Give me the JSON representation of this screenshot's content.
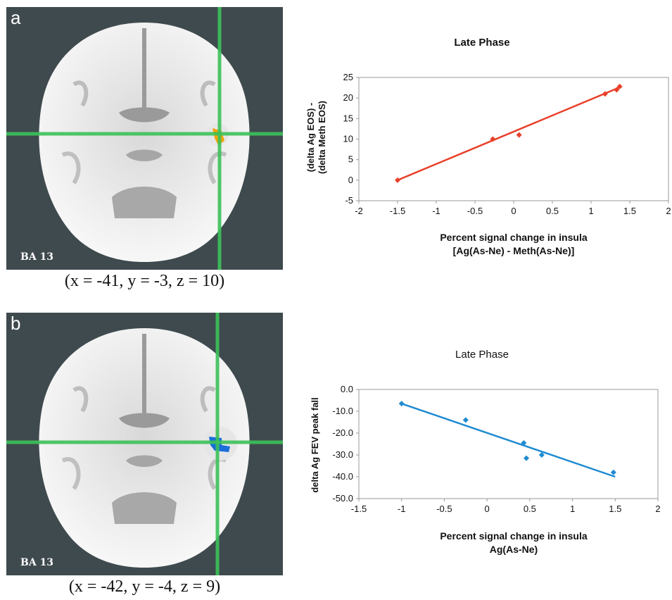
{
  "panel_a": {
    "letter": "a",
    "region_label": "BA 13",
    "coordinates": "(x = -41, y = -3, z = 10)",
    "blob_color": "#f2a300"
  },
  "panel_b": {
    "letter": "b",
    "region_label": "BA 13",
    "coordinates": "(x = -42, y = -4, z = 9)",
    "blob_color": "#1a6fd8"
  },
  "chart_data": [
    {
      "type": "scatter",
      "title": "Late Phase",
      "xlabel_line1": "Percent signal change in insula",
      "xlabel_line2": "[Ag(As-Ne) - Meth(As-Ne)]",
      "ylabel_line1": "(delta Ag EOS) -",
      "ylabel_line2": "(delta Meth EOS)",
      "xlim": [
        -2,
        2
      ],
      "ylim": [
        -5,
        25
      ],
      "xticks": [
        "-2",
        "-1.5",
        "-1",
        "-0.5",
        "0",
        "0.5",
        "1",
        "1.5",
        "2"
      ],
      "yticks": [
        "-5",
        "0",
        "5",
        "10",
        "15",
        "20",
        "25"
      ],
      "color": "#e8402a",
      "points": [
        {
          "x": -1.5,
          "y": 0
        },
        {
          "x": -0.27,
          "y": 10
        },
        {
          "x": 0.07,
          "y": 11
        },
        {
          "x": 1.18,
          "y": 21
        },
        {
          "x": 1.33,
          "y": 22
        },
        {
          "x": 1.37,
          "y": 22.8
        }
      ],
      "trendline": [
        {
          "x": -1.5,
          "y": 0
        },
        {
          "x": 1.37,
          "y": 22.6
        }
      ]
    },
    {
      "type": "scatter",
      "title": "Late Phase",
      "xlabel_line1": "Percent signal change in insula",
      "xlabel_line2": "Ag(As-Ne)",
      "ylabel_line1": "delta Ag FEV peak fall",
      "xlim": [
        -1.5,
        2
      ],
      "ylim": [
        -50,
        0
      ],
      "xticks": [
        "-1.5",
        "-1",
        "-0.5",
        "0",
        "0.5",
        "1",
        "1.5",
        "2"
      ],
      "yticks": [
        "0.0",
        "-10.0",
        "-20.0",
        "-30.0",
        "-40.0",
        "-50.0"
      ],
      "color": "#1f8bd1",
      "points": [
        {
          "x": -1.0,
          "y": -6.5
        },
        {
          "x": -0.25,
          "y": -14
        },
        {
          "x": 0.43,
          "y": -24.5
        },
        {
          "x": 0.46,
          "y": -31.5
        },
        {
          "x": 0.64,
          "y": -30
        },
        {
          "x": 1.48,
          "y": -38
        }
      ],
      "trendline": [
        {
          "x": -1.0,
          "y": -6.5
        },
        {
          "x": 1.5,
          "y": -40
        }
      ]
    }
  ]
}
